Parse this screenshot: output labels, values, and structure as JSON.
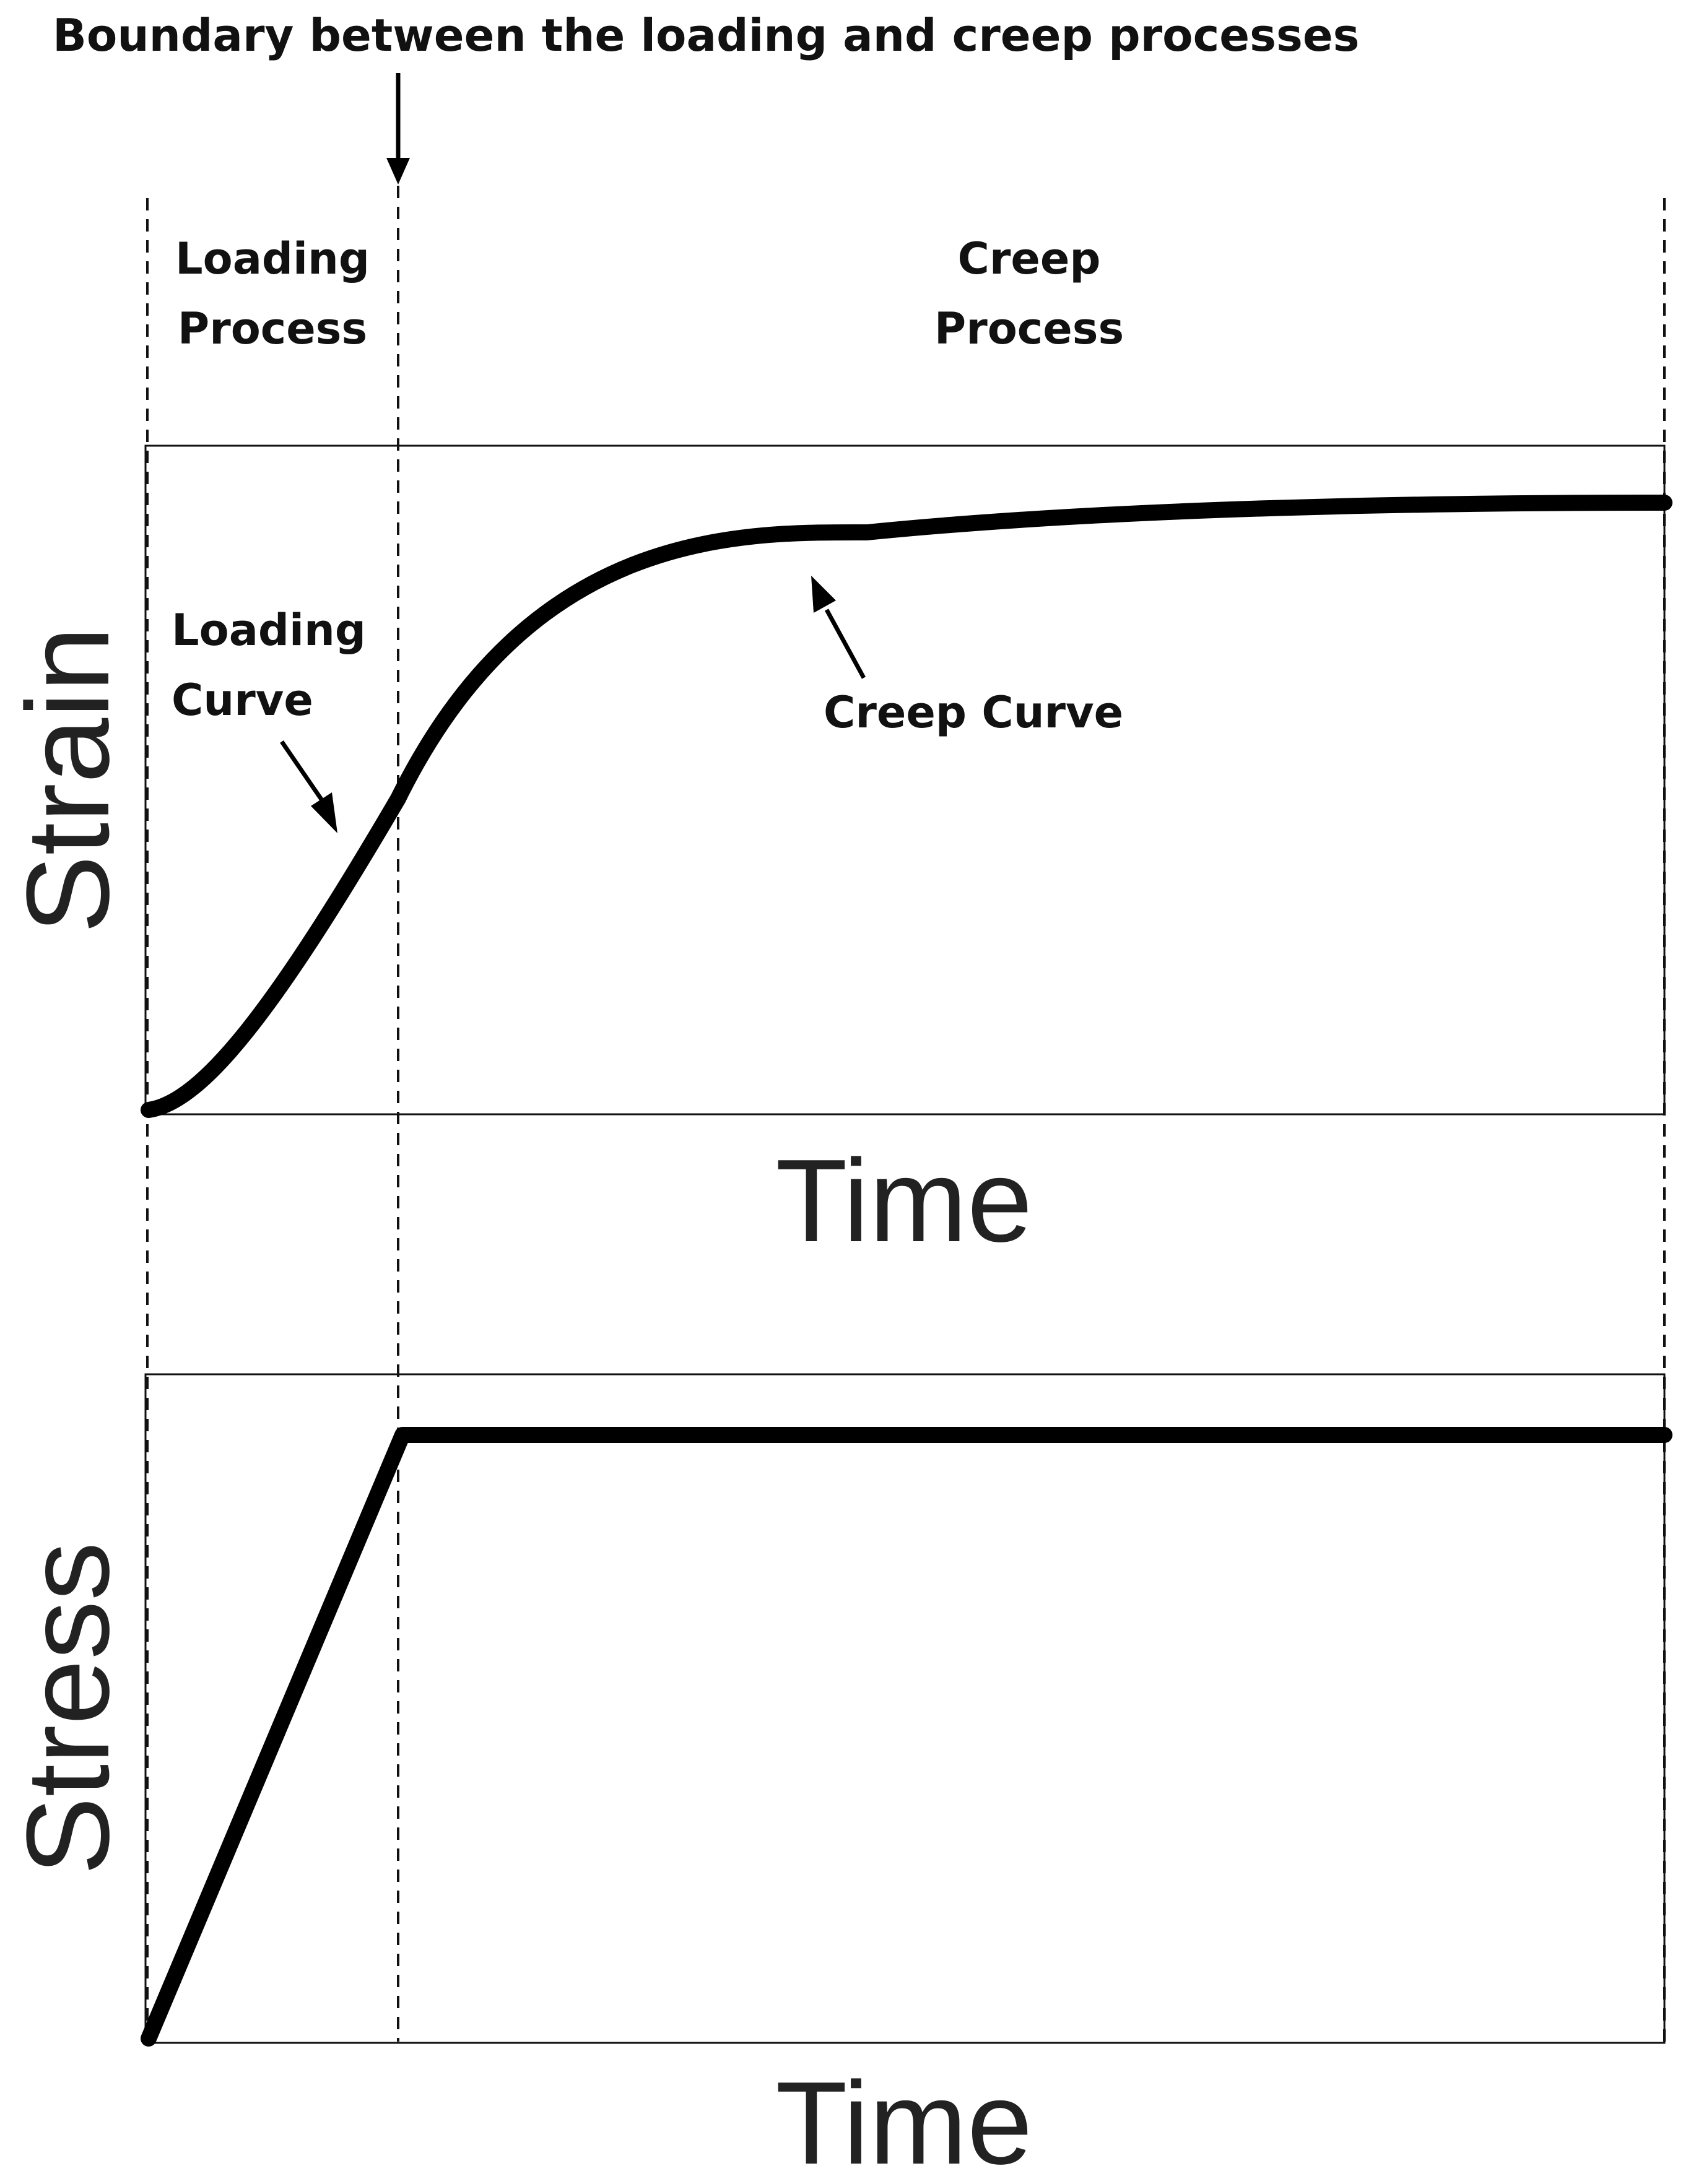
{
  "title": "Boundary between the loading and creep processes",
  "regions": {
    "loading_line1": "Loading",
    "loading_line2": "Process",
    "creep_line1": "Creep",
    "creep_line2": "Process"
  },
  "annotations": {
    "loading_curve_line1": "Loading",
    "loading_curve_line2": "Curve",
    "creep_curve": "Creep Curve"
  },
  "strain_plot": {
    "ylabel": "Strain",
    "xlabel": "Time"
  },
  "stress_plot": {
    "ylabel": "Stress",
    "xlabel": "Time"
  }
}
